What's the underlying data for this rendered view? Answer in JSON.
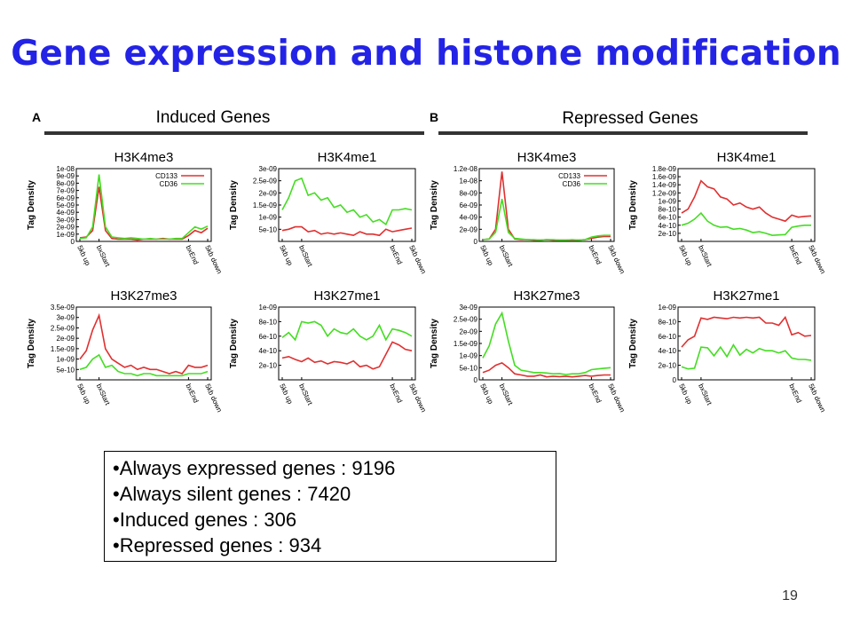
{
  "slide": {
    "title": "Gene expression and histone modification",
    "page_number": "19"
  },
  "panels": {
    "a": {
      "letter": "A",
      "heading": "Induced Genes"
    },
    "b": {
      "letter": "B",
      "heading": "Repressed Genes"
    }
  },
  "summary": {
    "items": [
      "•Always expressed genes : 9196",
      "•Always silent genes : 7420",
      "•Induced genes : 306",
      "•Repressed genes : 934"
    ]
  },
  "colors": {
    "title": "#2323e6",
    "CD133": "#e03030",
    "CD36": "#44dd22"
  },
  "chart_data": [
    {
      "type": "line",
      "panel": "A",
      "title": "H3K4me3",
      "ylabel": "Tag Density",
      "xticks": [
        "5kb up",
        "bxStart",
        "bxEnd",
        "5kb down"
      ],
      "ylim": [
        0,
        1e-08
      ],
      "yticks": [
        "0",
        "1e-09",
        "2e-09",
        "3e-09",
        "4e-09",
        "5e-09",
        "6e-09",
        "7e-09",
        "8e-09",
        "9e-09",
        "1e-08"
      ],
      "legend": [
        "CD133",
        "CD36"
      ],
      "series": [
        {
          "name": "CD133",
          "values": [
            5e-10,
            6e-10,
            1.5e-09,
            7.5e-09,
            1.5e-09,
            4e-10,
            3e-10,
            3e-10,
            3e-10,
            2e-10,
            3e-10,
            3e-10,
            3e-10,
            4e-10,
            3e-10,
            3e-10,
            3e-10,
            8e-10,
            1.5e-09,
            1.2e-09,
            1.8e-09
          ]
        },
        {
          "name": "CD36",
          "values": [
            4e-10,
            5e-10,
            2e-09,
            9.2e-09,
            2e-09,
            6e-10,
            5e-10,
            4e-10,
            5e-10,
            4e-10,
            3e-10,
            4e-10,
            3e-10,
            3e-10,
            3e-10,
            4e-10,
            4e-10,
            1.2e-09,
            2e-09,
            1.7e-09,
            2.1e-09
          ]
        }
      ]
    },
    {
      "type": "line",
      "panel": "A",
      "title": "H3K4me1",
      "ylabel": "Tag Density",
      "xticks": [
        "5kb up",
        "bxStart",
        "bxEnd",
        "5kb down"
      ],
      "ylim": [
        0,
        3e-09
      ],
      "yticks": [
        "5e-10",
        "1e-09",
        "1.5e-09",
        "2e-09",
        "2.5e-09",
        "3e-09"
      ],
      "series": [
        {
          "name": "CD133",
          "values": [
            4.5e-10,
            5e-10,
            6e-10,
            6e-10,
            4e-10,
            4.5e-10,
            3e-10,
            3.5e-10,
            3e-10,
            3.5e-10,
            3e-10,
            2.5e-10,
            4e-10,
            3e-10,
            3e-10,
            2.5e-10,
            5e-10,
            4e-10,
            4.5e-10,
            5e-10,
            5.5e-10
          ]
        },
        {
          "name": "CD36",
          "values": [
            1.3e-09,
            1.8e-09,
            2.5e-09,
            2.6e-09,
            1.9e-09,
            2e-09,
            1.7e-09,
            1.8e-09,
            1.4e-09,
            1.5e-09,
            1.2e-09,
            1.3e-09,
            1e-09,
            1.1e-09,
            8e-10,
            9e-10,
            7e-10,
            1.3e-09,
            1.3e-09,
            1.35e-09,
            1.3e-09
          ]
        }
      ]
    },
    {
      "type": "line",
      "panel": "A",
      "title": "H3K27me3",
      "ylabel": "Tag Density",
      "xticks": [
        "5kb up",
        "bxStart",
        "bxEnd",
        "5kb down"
      ],
      "ylim": [
        0,
        3.5e-09
      ],
      "yticks": [
        "5e-10",
        "1e-09",
        "1.5e-09",
        "2e-09",
        "2.5e-09",
        "3e-09",
        "3.5e-09"
      ],
      "series": [
        {
          "name": "CD133",
          "values": [
            1e-09,
            1.4e-09,
            2.4e-09,
            3.1e-09,
            1.5e-09,
            1e-09,
            8e-10,
            6e-10,
            7e-10,
            5e-10,
            6e-10,
            5e-10,
            5e-10,
            4e-10,
            3e-10,
            4e-10,
            3e-10,
            7e-10,
            6e-10,
            6e-10,
            7e-10
          ]
        },
        {
          "name": "CD36",
          "values": [
            5e-10,
            6e-10,
            1e-09,
            1.2e-09,
            6e-10,
            7e-10,
            4e-10,
            3e-10,
            3e-10,
            2e-10,
            3e-10,
            3e-10,
            2e-10,
            2e-10,
            2e-10,
            2e-10,
            2e-10,
            3e-10,
            3e-10,
            3e-10,
            4e-10
          ]
        }
      ]
    },
    {
      "type": "line",
      "panel": "A",
      "title": "H3K27me1",
      "ylabel": "Tag Density",
      "xticks": [
        "5kb up",
        "bxStart",
        "bxEnd",
        "5kb down"
      ],
      "ylim": [
        0,
        1e-09
      ],
      "yticks": [
        "2e-10",
        "4e-10",
        "6e-10",
        "8e-10",
        "1e-09"
      ],
      "series": [
        {
          "name": "CD133",
          "values": [
            3e-10,
            3.2e-10,
            2.8e-10,
            2.5e-10,
            3e-10,
            2.4e-10,
            2.6e-10,
            2.2e-10,
            2.5e-10,
            2.4e-10,
            2.2e-10,
            2.6e-10,
            1.8e-10,
            2e-10,
            1.5e-10,
            1.8e-10,
            3.5e-10,
            5.2e-10,
            4.8e-10,
            4.2e-10,
            4e-10
          ]
        },
        {
          "name": "CD36",
          "values": [
            5.8e-10,
            6.5e-10,
            5.5e-10,
            8e-10,
            7.8e-10,
            8e-10,
            7.5e-10,
            6e-10,
            7e-10,
            6.5e-10,
            6.3e-10,
            7e-10,
            6e-10,
            5.5e-10,
            6e-10,
            7.5e-10,
            5.5e-10,
            7e-10,
            6.8e-10,
            6.5e-10,
            6e-10
          ]
        }
      ]
    },
    {
      "type": "line",
      "panel": "B",
      "title": "H3K4me3",
      "ylabel": "Tag Density",
      "xticks": [
        "5kb up",
        "bxStart",
        "bxEnd",
        "5kb down"
      ],
      "ylim": [
        0,
        1.2e-08
      ],
      "yticks": [
        "0",
        "2e-09",
        "4e-09",
        "6e-09",
        "8e-09",
        "1e-08",
        "1.2e-08"
      ],
      "legend": [
        "CD133",
        "CD36"
      ],
      "series": [
        {
          "name": "CD133",
          "values": [
            3e-10,
            4e-10,
            2e-09,
            1.15e-08,
            2e-09,
            4e-10,
            3e-10,
            3e-10,
            2e-10,
            2e-10,
            3e-10,
            2e-10,
            2e-10,
            2e-10,
            2e-10,
            2e-10,
            3e-10,
            5e-10,
            7e-10,
            8e-10,
            8e-10
          ]
        },
        {
          "name": "CD36",
          "values": [
            3e-10,
            4e-10,
            1.5e-09,
            7e-09,
            1.5e-09,
            5e-10,
            4e-10,
            3e-10,
            3e-10,
            2e-10,
            3e-10,
            3e-10,
            2e-10,
            2e-10,
            3e-10,
            2e-10,
            3e-10,
            7e-10,
            9e-10,
            1e-09,
            1e-09
          ]
        }
      ]
    },
    {
      "type": "line",
      "panel": "B",
      "title": "H3K4me1",
      "ylabel": "Tag Density",
      "xticks": [
        "5kb up",
        "bxStart",
        "bxEnd",
        "5kb down"
      ],
      "ylim": [
        0,
        1.8e-09
      ],
      "yticks": [
        "2e-10",
        "4e-10",
        "6e-10",
        "8e-10",
        "1e-09",
        "1.2e-09",
        "1.4e-09",
        "1.6e-09",
        "1.8e-09"
      ],
      "series": [
        {
          "name": "CD133",
          "values": [
            7e-10,
            8e-10,
            1.1e-09,
            1.5e-09,
            1.35e-09,
            1.3e-09,
            1.1e-09,
            1.05e-09,
            9e-10,
            9.5e-10,
            8.5e-10,
            8e-10,
            8.5e-10,
            7e-10,
            6e-10,
            5.5e-10,
            5e-10,
            6.5e-10,
            6e-10,
            6.2e-10,
            6.3e-10
          ]
        },
        {
          "name": "CD36",
          "values": [
            4e-10,
            4.5e-10,
            5.5e-10,
            7e-10,
            5e-10,
            4e-10,
            3.5e-10,
            3.6e-10,
            3e-10,
            3.2e-10,
            2.8e-10,
            2.2e-10,
            2.4e-10,
            2e-10,
            1.5e-10,
            1.6e-10,
            1.7e-10,
            3.5e-10,
            3.8e-10,
            4e-10,
            4e-10
          ]
        }
      ]
    },
    {
      "type": "line",
      "panel": "B",
      "title": "H3K27me3",
      "ylabel": "Tag Density",
      "xticks": [
        "5kb up",
        "bxStart",
        "bxEnd",
        "5kb down"
      ],
      "ylim": [
        0,
        3e-09
      ],
      "yticks": [
        "0",
        "5e-10",
        "1e-09",
        "1.5e-09",
        "2e-09",
        "2.5e-09",
        "3e-09"
      ],
      "series": [
        {
          "name": "CD133",
          "values": [
            3e-10,
            4e-10,
            6e-10,
            7e-10,
            5e-10,
            2.5e-10,
            2e-10,
            1.5e-10,
            1.5e-10,
            2e-10,
            1.2e-10,
            1.5e-10,
            1.3e-10,
            1.5e-10,
            1.2e-10,
            1.5e-10,
            1.8e-10,
            1.5e-10,
            1.8e-10,
            2e-10,
            2e-10
          ]
        },
        {
          "name": "CD36",
          "values": [
            9e-10,
            1.4e-09,
            2.3e-09,
            2.75e-09,
            1.6e-09,
            6e-10,
            4e-10,
            3.5e-10,
            3e-10,
            3e-10,
            2.8e-10,
            2.5e-10,
            2.6e-10,
            2.2e-10,
            2.5e-10,
            2.5e-10,
            3e-10,
            4.2e-10,
            4.5e-10,
            4.8e-10,
            5e-10
          ]
        }
      ]
    },
    {
      "type": "line",
      "panel": "B",
      "title": "H3K27me1",
      "ylabel": "Tag Density",
      "xticks": [
        "5kb up",
        "bxStart",
        "bxEnd",
        "5kb down"
      ],
      "ylim": [
        0,
        1e-09
      ],
      "yticks": [
        "0",
        "2e-10",
        "4e-10",
        "6e-10",
        "8e-10",
        "1e-09"
      ],
      "series": [
        {
          "name": "CD133",
          "values": [
            4.5e-10,
            5.5e-10,
            6e-10,
            8.5e-10,
            8.3e-10,
            8.6e-10,
            8.5e-10,
            8.4e-10,
            8.6e-10,
            8.5e-10,
            8.6e-10,
            8.5e-10,
            8.6e-10,
            7.8e-10,
            7.8e-10,
            7.5e-10,
            8.6e-10,
            6.2e-10,
            6.5e-10,
            6e-10,
            6.1e-10
          ]
        },
        {
          "name": "CD36",
          "values": [
            1.8e-10,
            1.5e-10,
            1.6e-10,
            4.5e-10,
            4.4e-10,
            3.3e-10,
            4.5e-10,
            3.2e-10,
            4.8e-10,
            3.4e-10,
            4.2e-10,
            3.7e-10,
            4.3e-10,
            4e-10,
            4e-10,
            3.7e-10,
            4e-10,
            3e-10,
            2.8e-10,
            2.8e-10,
            2.7e-10
          ]
        }
      ]
    }
  ]
}
